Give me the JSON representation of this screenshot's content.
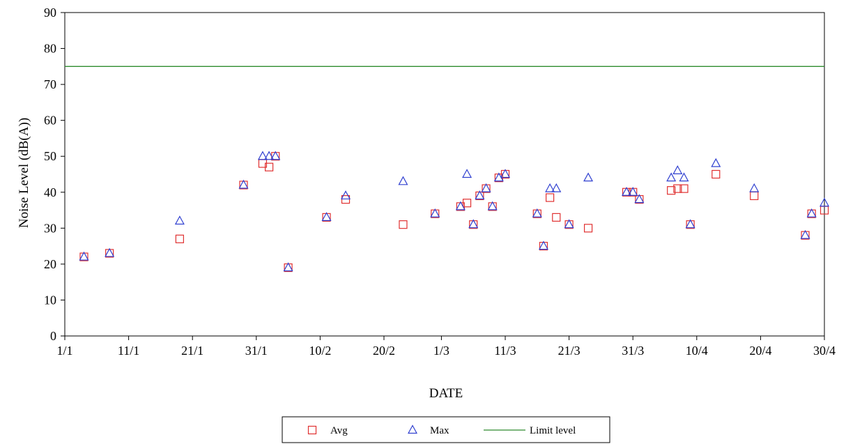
{
  "chart_data": {
    "type": "scatter",
    "xlabel": "DATE",
    "ylabel": "Noise Level (dB(A))",
    "ylim": [
      0,
      90
    ],
    "yticks": [
      "0",
      "10",
      "20",
      "30",
      "40",
      "50",
      "60",
      "70",
      "80",
      "90"
    ],
    "xlim": [
      "1/1",
      "30/4"
    ],
    "xticks": [
      "1/1",
      "11/1",
      "21/1",
      "31/1",
      "10/2",
      "20/2",
      "1/3",
      "11/3",
      "21/3",
      "31/3",
      "10/4",
      "20/4",
      "30/4"
    ],
    "grid": false,
    "legend_position": "bottom-center",
    "series": [
      {
        "name": "Avg",
        "marker": "square",
        "color": "#e03030",
        "points": [
          {
            "x": "4/1",
            "y": 22
          },
          {
            "x": "8/1",
            "y": 23
          },
          {
            "x": "19/1",
            "y": 27
          },
          {
            "x": "29/1",
            "y": 42
          },
          {
            "x": "1/2",
            "y": 48
          },
          {
            "x": "2/2",
            "y": 47
          },
          {
            "x": "3/2",
            "y": 50
          },
          {
            "x": "5/2",
            "y": 19
          },
          {
            "x": "11/2",
            "y": 33
          },
          {
            "x": "14/2",
            "y": 38
          },
          {
            "x": "23/2",
            "y": 31
          },
          {
            "x": "28/2",
            "y": 34
          },
          {
            "x": "4/3",
            "y": 36
          },
          {
            "x": "5/3",
            "y": 37
          },
          {
            "x": "6/3",
            "y": 31
          },
          {
            "x": "7/3",
            "y": 39
          },
          {
            "x": "8/3",
            "y": 41
          },
          {
            "x": "9/3",
            "y": 36
          },
          {
            "x": "10/3",
            "y": 44
          },
          {
            "x": "11/3",
            "y": 45
          },
          {
            "x": "16/3",
            "y": 34
          },
          {
            "x": "17/3",
            "y": 25
          },
          {
            "x": "18/3",
            "y": 38.5
          },
          {
            "x": "19/3",
            "y": 33
          },
          {
            "x": "21/3",
            "y": 31
          },
          {
            "x": "24/3",
            "y": 30
          },
          {
            "x": "30/3",
            "y": 40
          },
          {
            "x": "31/3",
            "y": 40
          },
          {
            "x": "1/4",
            "y": 38
          },
          {
            "x": "6/4",
            "y": 40.5
          },
          {
            "x": "7/4",
            "y": 41
          },
          {
            "x": "8/4",
            "y": 41
          },
          {
            "x": "9/4",
            "y": 31
          },
          {
            "x": "13/4",
            "y": 45
          },
          {
            "x": "19/4",
            "y": 39
          },
          {
            "x": "27/4",
            "y": 28
          },
          {
            "x": "28/4",
            "y": 34
          },
          {
            "x": "30/4",
            "y": 35
          }
        ]
      },
      {
        "name": "Max",
        "marker": "triangle",
        "color": "#3040d0",
        "points": [
          {
            "x": "4/1",
            "y": 22
          },
          {
            "x": "8/1",
            "y": 23
          },
          {
            "x": "19/1",
            "y": 32
          },
          {
            "x": "29/1",
            "y": 42
          },
          {
            "x": "1/2",
            "y": 50
          },
          {
            "x": "2/2",
            "y": 50
          },
          {
            "x": "3/2",
            "y": 50
          },
          {
            "x": "5/2",
            "y": 19
          },
          {
            "x": "11/2",
            "y": 33
          },
          {
            "x": "14/2",
            "y": 39
          },
          {
            "x": "23/2",
            "y": 43
          },
          {
            "x": "28/2",
            "y": 34
          },
          {
            "x": "4/3",
            "y": 36
          },
          {
            "x": "5/3",
            "y": 45
          },
          {
            "x": "6/3",
            "y": 31
          },
          {
            "x": "7/3",
            "y": 39
          },
          {
            "x": "8/3",
            "y": 41
          },
          {
            "x": "9/3",
            "y": 36
          },
          {
            "x": "10/3",
            "y": 44
          },
          {
            "x": "11/3",
            "y": 45
          },
          {
            "x": "16/3",
            "y": 34
          },
          {
            "x": "17/3",
            "y": 25
          },
          {
            "x": "18/3",
            "y": 41
          },
          {
            "x": "19/3",
            "y": 41
          },
          {
            "x": "21/3",
            "y": 31
          },
          {
            "x": "24/3",
            "y": 44
          },
          {
            "x": "30/3",
            "y": 40
          },
          {
            "x": "31/3",
            "y": 40
          },
          {
            "x": "1/4",
            "y": 38
          },
          {
            "x": "6/4",
            "y": 44
          },
          {
            "x": "7/4",
            "y": 46
          },
          {
            "x": "8/4",
            "y": 44
          },
          {
            "x": "9/4",
            "y": 31
          },
          {
            "x": "13/4",
            "y": 48
          },
          {
            "x": "19/4",
            "y": 41
          },
          {
            "x": "27/4",
            "y": 28
          },
          {
            "x": "28/4",
            "y": 34
          },
          {
            "x": "30/4",
            "y": 37
          }
        ]
      },
      {
        "name": "Limit level",
        "marker": "line",
        "color": "#2e8b2e",
        "value": 75
      }
    ]
  }
}
